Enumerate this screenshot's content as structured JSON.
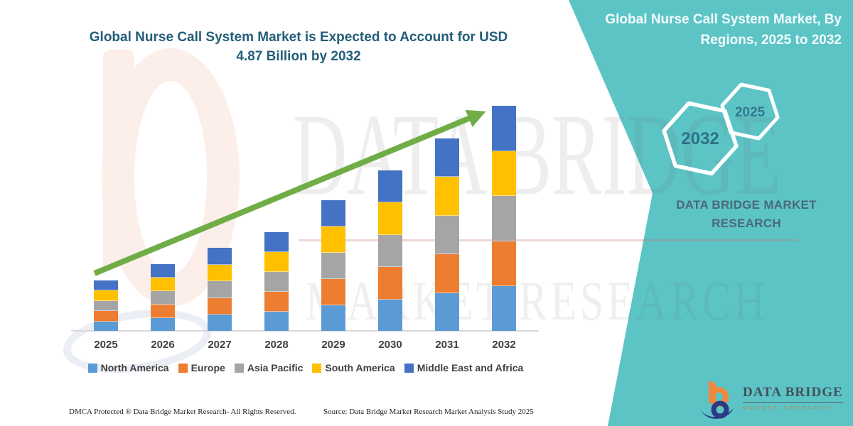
{
  "header": {
    "left_title": "Global Nurse Call System Market is Expected to Account for USD 4.87 Billion by 2032",
    "right_title_line1": "Global Nurse Call System Market, By",
    "right_title_line2": "Regions, 2025 to 2032"
  },
  "side_panel": {
    "hexagons": [
      {
        "label": "2032"
      },
      {
        "label": "2025"
      }
    ],
    "brand_line1": "DATA BRIDGE MARKET",
    "brand_line2": "RESEARCH"
  },
  "watermark": {
    "line1": "DATA BRIDGE",
    "line2": "MARKET RESEARCH"
  },
  "chart_data": {
    "type": "bar",
    "stacked": true,
    "title": "Global Nurse Call System Market is Expected to Account for USD 4.87 Billion by 2032",
    "unit": "USD Billion",
    "categories": [
      "2025",
      "2026",
      "2027",
      "2028",
      "2029",
      "2030",
      "2031",
      "2032"
    ],
    "totals": [
      1.04,
      1.39,
      1.74,
      2.09,
      2.78,
      3.47,
      4.17,
      4.87
    ],
    "series": [
      {
        "name": "North America",
        "color": "#5B9BD5",
        "values": [
          0.21,
          0.28,
          0.35,
          0.42,
          0.56,
          0.69,
          0.83,
          0.97
        ]
      },
      {
        "name": "Europe",
        "color": "#ED7D31",
        "values": [
          0.21,
          0.28,
          0.35,
          0.42,
          0.56,
          0.69,
          0.83,
          0.97
        ]
      },
      {
        "name": "Asia Pacific",
        "color": "#A5A5A5",
        "values": [
          0.21,
          0.28,
          0.35,
          0.42,
          0.56,
          0.69,
          0.83,
          0.97
        ]
      },
      {
        "name": "South America",
        "color": "#FFC000",
        "values": [
          0.21,
          0.28,
          0.35,
          0.42,
          0.56,
          0.69,
          0.83,
          0.97
        ]
      },
      {
        "name": "Middle East and Africa",
        "color": "#4472C4",
        "values": [
          0.21,
          0.28,
          0.35,
          0.42,
          0.56,
          0.69,
          0.83,
          0.97
        ]
      }
    ],
    "ylim": [
      0,
      5
    ],
    "grid": false,
    "legend_position": "bottom",
    "annotation": "green upward growth trend arrow from 2025 to 2032"
  },
  "footer": {
    "dmca": "DMCA Protected ® Data Bridge Market Research-  All Rights Reserved.",
    "source": "Source: Data Bridge Market Research  Market Analysis Study 2025"
  },
  "logo": {
    "name": "DATA BRIDGE",
    "tagline": "MARKET RESEARCH"
  },
  "colors": {
    "panel_teal": "#5DC4C6",
    "title_text": "#235E78",
    "arrow_green": "#70AD47",
    "axis_line": "#D9D9D9",
    "label_text": "#404040",
    "brand_text": "#4A6878",
    "logo_orange": "#F0883E",
    "logo_navy": "#2B3A86"
  }
}
